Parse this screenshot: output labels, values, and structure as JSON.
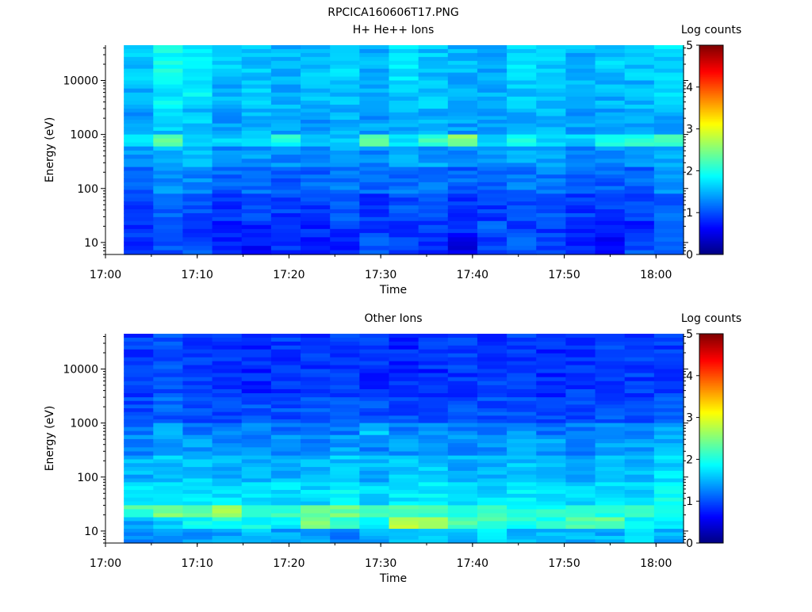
{
  "page_title": "RPCICA160606T17.PNG",
  "chart_data": [
    {
      "type": "heatmap",
      "title": "H+ He++ Ions",
      "xlabel": "Time",
      "ylabel": "Energy (eV)",
      "y_scale": "log",
      "ylim": [
        6,
        45000
      ],
      "xlim": [
        "17:00",
        "18:03"
      ],
      "data_start": "17:02",
      "x_ticks": [
        "17:00",
        "17:10",
        "17:20",
        "17:30",
        "17:40",
        "17:50",
        "18:00"
      ],
      "y_ticks": [
        "10",
        "100",
        "1000",
        "10000"
      ],
      "colorbar": {
        "label": "Log counts",
        "range": [
          0,
          5
        ],
        "ticks": [
          "0",
          "1",
          "2",
          "3",
          "4",
          "5"
        ],
        "colormap": "jet"
      },
      "grid": false,
      "energy_bands": [
        {
          "energy_range_eV": [
            10000,
            45000
          ],
          "log_counts": [
            1.6,
            1.9,
            1.8,
            1.6,
            1.6,
            1.5,
            1.6,
            1.7,
            1.5,
            1.7,
            1.6,
            1.5,
            1.4,
            1.7,
            1.6,
            1.5,
            1.6,
            1.6,
            1.7
          ]
        },
        {
          "energy_range_eV": [
            3000,
            10000
          ],
          "log_counts": [
            1.5,
            1.8,
            1.8,
            1.5,
            1.6,
            1.5,
            1.5,
            1.6,
            1.5,
            1.6,
            1.6,
            1.5,
            1.5,
            1.6,
            1.6,
            1.5,
            1.5,
            1.5,
            1.7
          ]
        },
        {
          "energy_range_eV": [
            1000,
            3000
          ],
          "log_counts": [
            1.4,
            1.6,
            1.6,
            1.4,
            1.5,
            1.4,
            1.4,
            1.5,
            1.4,
            1.5,
            1.5,
            1.4,
            1.4,
            1.5,
            1.5,
            1.4,
            1.4,
            1.4,
            1.5
          ]
        },
        {
          "energy_range_eV": [
            600,
            1000
          ],
          "log_counts": [
            1.7,
            2.4,
            1.7,
            1.6,
            1.6,
            2.0,
            1.7,
            1.6,
            2.3,
            1.7,
            2.2,
            2.5,
            1.7,
            1.9,
            1.6,
            1.7,
            2.1,
            2.0,
            2.2
          ]
        },
        {
          "energy_range_eV": [
            250,
            600
          ],
          "log_counts": [
            1.4,
            1.5,
            1.5,
            1.3,
            1.4,
            1.3,
            1.3,
            1.4,
            1.3,
            1.4,
            1.4,
            1.3,
            1.3,
            1.4,
            1.4,
            1.3,
            1.3,
            1.3,
            1.5
          ]
        },
        {
          "energy_range_eV": [
            80,
            250
          ],
          "log_counts": [
            1.1,
            1.3,
            1.3,
            1.1,
            1.2,
            1.1,
            1.1,
            1.2,
            1.1,
            1.2,
            1.2,
            1.1,
            1.1,
            1.2,
            1.2,
            1.1,
            1.1,
            1.1,
            1.3
          ]
        },
        {
          "energy_range_eV": [
            25,
            80
          ],
          "log_counts": [
            0.9,
            1.1,
            1.0,
            0.9,
            1.0,
            0.9,
            0.9,
            1.0,
            0.9,
            1.0,
            1.0,
            0.9,
            0.9,
            1.0,
            1.0,
            0.9,
            0.9,
            0.9,
            1.1
          ]
        },
        {
          "energy_range_eV": [
            15,
            25
          ],
          "log_counts": [
            0.8,
            0.9,
            0.9,
            0.8,
            0.8,
            0.8,
            0.8,
            0.9,
            0.8,
            0.8,
            0.9,
            0.8,
            1.2,
            0.9,
            0.9,
            0.8,
            0.8,
            0.8,
            1.0
          ]
        },
        {
          "energy_range_eV": [
            6,
            15
          ],
          "log_counts": [
            0.9,
            1.0,
            1.0,
            0.8,
            0.7,
            0.9,
            0.8,
            0.7,
            1.1,
            0.9,
            0.9,
            0.5,
            0.9,
            1.1,
            0.9,
            0.8,
            0.7,
            1.0,
            1.0
          ]
        }
      ]
    },
    {
      "type": "heatmap",
      "title": "Other Ions",
      "xlabel": "Time",
      "ylabel": "Energy (eV)",
      "y_scale": "log",
      "ylim": [
        6,
        45000
      ],
      "xlim": [
        "17:00",
        "18:03"
      ],
      "data_start": "17:02",
      "x_ticks": [
        "17:00",
        "17:10",
        "17:20",
        "17:30",
        "17:40",
        "17:50",
        "18:00"
      ],
      "y_ticks": [
        "10",
        "100",
        "1000",
        "10000"
      ],
      "colorbar": {
        "label": "Log counts",
        "range": [
          0,
          5
        ],
        "ticks": [
          "0",
          "1",
          "2",
          "3",
          "4",
          "5"
        ],
        "colormap": "jet"
      },
      "grid": false,
      "energy_bands": [
        {
          "energy_range_eV": [
            10000,
            45000
          ],
          "log_counts": [
            0.9,
            1.0,
            0.9,
            0.9,
            0.8,
            0.9,
            0.9,
            0.9,
            0.9,
            0.8,
            0.9,
            0.9,
            0.9,
            0.9,
            0.8,
            0.9,
            1.0,
            0.9,
            0.9
          ]
        },
        {
          "energy_range_eV": [
            3000,
            10000
          ],
          "log_counts": [
            0.9,
            1.0,
            0.9,
            0.9,
            0.8,
            0.9,
            0.9,
            0.9,
            0.8,
            0.8,
            0.8,
            0.9,
            0.9,
            0.9,
            0.8,
            0.9,
            0.9,
            0.9,
            0.9
          ]
        },
        {
          "energy_range_eV": [
            1000,
            3000
          ],
          "log_counts": [
            1.0,
            1.1,
            1.0,
            1.0,
            1.0,
            1.0,
            1.0,
            1.0,
            1.0,
            1.0,
            1.0,
            1.0,
            1.0,
            1.0,
            1.0,
            1.0,
            1.0,
            1.0,
            1.0
          ]
        },
        {
          "energy_range_eV": [
            600,
            1000
          ],
          "log_counts": [
            1.2,
            1.4,
            1.2,
            1.2,
            1.2,
            1.2,
            1.2,
            1.2,
            1.6,
            1.2,
            1.3,
            1.3,
            1.2,
            1.3,
            1.2,
            1.2,
            1.3,
            1.3,
            1.4
          ]
        },
        {
          "energy_range_eV": [
            250,
            600
          ],
          "log_counts": [
            1.3,
            1.4,
            1.4,
            1.3,
            1.3,
            1.3,
            1.3,
            1.4,
            1.3,
            1.4,
            1.4,
            1.3,
            1.3,
            1.4,
            1.4,
            1.3,
            1.4,
            1.4,
            1.5
          ]
        },
        {
          "energy_range_eV": [
            80,
            250
          ],
          "log_counts": [
            1.5,
            1.6,
            1.6,
            1.5,
            1.5,
            1.5,
            1.5,
            1.6,
            1.5,
            1.6,
            1.6,
            1.5,
            1.5,
            1.6,
            1.6,
            1.5,
            1.5,
            1.5,
            1.7
          ]
        },
        {
          "energy_range_eV": [
            30,
            80
          ],
          "log_counts": [
            1.7,
            1.8,
            1.8,
            1.7,
            1.7,
            1.7,
            1.7,
            1.8,
            1.7,
            1.8,
            1.8,
            1.7,
            1.7,
            1.8,
            1.8,
            1.7,
            1.7,
            1.7,
            1.9
          ]
        },
        {
          "energy_range_eV": [
            18,
            30
          ],
          "log_counts": [
            2.2,
            2.5,
            2.3,
            2.6,
            2.2,
            2.1,
            2.4,
            2.4,
            2.2,
            2.2,
            2.1,
            2.1,
            2.1,
            2.0,
            2.0,
            2.1,
            2.0,
            2.0,
            2.1
          ]
        },
        {
          "energy_range_eV": [
            11,
            18
          ],
          "log_counts": [
            1.5,
            1.6,
            1.9,
            2.0,
            1.9,
            1.9,
            2.4,
            2.2,
            1.9,
            2.7,
            2.6,
            2.2,
            2.2,
            2.0,
            2.0,
            2.3,
            2.3,
            1.9,
            1.9
          ]
        },
        {
          "energy_range_eV": [
            6,
            11
          ],
          "log_counts": [
            1.3,
            1.3,
            1.4,
            1.4,
            1.6,
            1.4,
            1.4,
            1.2,
            1.5,
            1.7,
            1.6,
            1.5,
            1.7,
            1.5,
            1.6,
            1.5,
            1.5,
            1.7,
            1.5
          ]
        }
      ]
    }
  ]
}
